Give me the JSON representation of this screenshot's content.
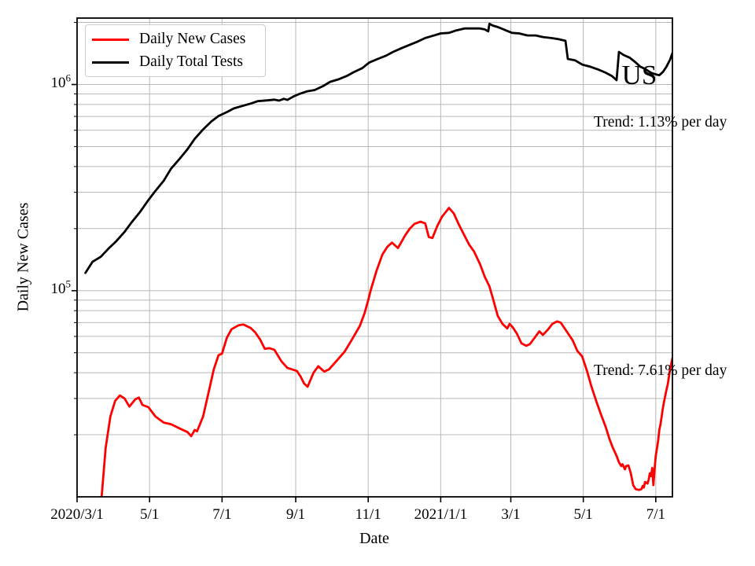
{
  "annotations": {
    "country": "US",
    "trend_tests": "Trend: 1.13% per day",
    "trend_cases": "Trend: 7.61% per day"
  },
  "legend": [
    {
      "label": "Daily New Cases",
      "color": "#ff0000"
    },
    {
      "label": "Daily Total Tests",
      "color": "#000000"
    }
  ],
  "axes": {
    "xlabel": "Date",
    "ylabel": "Daily New Cases",
    "x_ticks": [
      {
        "label": "2020/3/1",
        "date": "2020-03-01"
      },
      {
        "label": "5/1",
        "date": "2020-05-01"
      },
      {
        "label": "7/1",
        "date": "2020-07-01"
      },
      {
        "label": "9/1",
        "date": "2020-09-01"
      },
      {
        "label": "11/1",
        "date": "2020-11-01"
      },
      {
        "label": "2021/1/1",
        "date": "2021-01-01"
      },
      {
        "label": "3/1",
        "date": "2021-03-01"
      },
      {
        "label": "5/1",
        "date": "2021-05-01"
      },
      {
        "label": "7/1",
        "date": "2021-07-01"
      }
    ],
    "y_ticks": [
      {
        "base": "10",
        "exp": "5",
        "value": 100000
      },
      {
        "base": "10",
        "exp": "6",
        "value": 1000000
      }
    ]
  },
  "style": {
    "grid_color": "#b8b8b8",
    "spine_color": "#000000",
    "accent_red": "#ff0000"
  },
  "chart_data": {
    "type": "line",
    "y_scale": "log",
    "grid": true,
    "legend_position": "upper left",
    "x_range": [
      "2020-03-01",
      "2021-07-15"
    ],
    "y_range": [
      10000,
      2100000
    ],
    "title": "US",
    "xlabel": "Date",
    "ylabel": "Daily New Cases",
    "series": [
      {
        "name": "Daily New Cases",
        "color": "#ff0000",
        "points": [
          [
            "2020-03-20",
            8000
          ],
          [
            "2020-03-22",
            10500
          ],
          [
            "2020-03-25",
            17200
          ],
          [
            "2020-03-29",
            24500
          ],
          [
            "2020-04-02",
            29200
          ],
          [
            "2020-04-06",
            31000
          ],
          [
            "2020-04-10",
            30000
          ],
          [
            "2020-04-14",
            27400
          ],
          [
            "2020-04-19",
            29700
          ],
          [
            "2020-04-22",
            30300
          ],
          [
            "2020-04-25",
            27900
          ],
          [
            "2020-04-30",
            27200
          ],
          [
            "2020-05-06",
            24500
          ],
          [
            "2020-05-13",
            22900
          ],
          [
            "2020-05-19",
            22500
          ],
          [
            "2020-05-26",
            21500
          ],
          [
            "2020-06-02",
            20600
          ],
          [
            "2020-06-05",
            19700
          ],
          [
            "2020-06-08",
            21100
          ],
          [
            "2020-06-10",
            20800
          ],
          [
            "2020-06-15",
            24500
          ],
          [
            "2020-06-20",
            32700
          ],
          [
            "2020-06-24",
            41500
          ],
          [
            "2020-06-28",
            48600
          ],
          [
            "2020-07-01",
            49500
          ],
          [
            "2020-07-05",
            59000
          ],
          [
            "2020-07-09",
            65000
          ],
          [
            "2020-07-15",
            68000
          ],
          [
            "2020-07-19",
            68500
          ],
          [
            "2020-07-25",
            66000
          ],
          [
            "2020-07-29",
            62700
          ],
          [
            "2020-08-02",
            58000
          ],
          [
            "2020-08-06",
            52200
          ],
          [
            "2020-08-10",
            52600
          ],
          [
            "2020-08-14",
            51700
          ],
          [
            "2020-08-20",
            45400
          ],
          [
            "2020-08-25",
            42200
          ],
          [
            "2020-08-29",
            41500
          ],
          [
            "2020-09-02",
            40800
          ],
          [
            "2020-09-05",
            38400
          ],
          [
            "2020-09-08",
            35500
          ],
          [
            "2020-09-11",
            34200
          ],
          [
            "2020-09-16",
            40000
          ],
          [
            "2020-09-20",
            43000
          ],
          [
            "2020-09-25",
            40500
          ],
          [
            "2020-09-29",
            41500
          ],
          [
            "2020-10-05",
            45400
          ],
          [
            "2020-10-12",
            50500
          ],
          [
            "2020-10-18",
            57500
          ],
          [
            "2020-10-25",
            67500
          ],
          [
            "2020-10-29",
            78000
          ],
          [
            "2020-11-01",
            90000
          ],
          [
            "2020-11-03",
            100000
          ],
          [
            "2020-11-08",
            125000
          ],
          [
            "2020-11-13",
            150000
          ],
          [
            "2020-11-17",
            163000
          ],
          [
            "2020-11-21",
            171000
          ],
          [
            "2020-11-26",
            161000
          ],
          [
            "2020-12-02",
            185000
          ],
          [
            "2020-12-06",
            200000
          ],
          [
            "2020-12-10",
            211000
          ],
          [
            "2020-12-15",
            216000
          ],
          [
            "2020-12-19",
            212000
          ],
          [
            "2020-12-22",
            182000
          ],
          [
            "2020-12-25",
            180000
          ],
          [
            "2020-12-29",
            205000
          ],
          [
            "2021-01-02",
            228000
          ],
          [
            "2021-01-08",
            252000
          ],
          [
            "2021-01-12",
            237000
          ],
          [
            "2021-01-16",
            211000
          ],
          [
            "2021-01-21",
            185000
          ],
          [
            "2021-01-25",
            167000
          ],
          [
            "2021-01-29",
            155000
          ],
          [
            "2021-02-03",
            135000
          ],
          [
            "2021-02-07",
            117000
          ],
          [
            "2021-02-11",
            105000
          ],
          [
            "2021-02-14",
            91500
          ],
          [
            "2021-02-18",
            75500
          ],
          [
            "2021-02-22",
            69000
          ],
          [
            "2021-02-26",
            65600
          ],
          [
            "2021-02-28",
            69000
          ],
          [
            "2021-03-03",
            66000
          ],
          [
            "2021-03-06",
            62000
          ],
          [
            "2021-03-10",
            55500
          ],
          [
            "2021-03-14",
            54000
          ],
          [
            "2021-03-17",
            55000
          ],
          [
            "2021-03-21",
            59000
          ],
          [
            "2021-03-25",
            63500
          ],
          [
            "2021-03-28",
            61000
          ],
          [
            "2021-04-01",
            64500
          ],
          [
            "2021-04-05",
            69000
          ],
          [
            "2021-04-09",
            71000
          ],
          [
            "2021-04-12",
            70000
          ],
          [
            "2021-04-17",
            63500
          ],
          [
            "2021-04-22",
            57500
          ],
          [
            "2021-04-26",
            51000
          ],
          [
            "2021-04-30",
            48000
          ],
          [
            "2021-05-04",
            41000
          ],
          [
            "2021-05-08",
            34000
          ],
          [
            "2021-05-12",
            29000
          ],
          [
            "2021-05-16",
            25000
          ],
          [
            "2021-05-20",
            21700
          ],
          [
            "2021-05-23",
            19100
          ],
          [
            "2021-05-26",
            17200
          ],
          [
            "2021-05-29",
            15800
          ],
          [
            "2021-05-31",
            14700
          ],
          [
            "2021-06-02",
            14100
          ],
          [
            "2021-06-03",
            14400
          ],
          [
            "2021-06-05",
            13600
          ],
          [
            "2021-06-06",
            14100
          ],
          [
            "2021-06-08",
            14200
          ],
          [
            "2021-06-09",
            13600
          ],
          [
            "2021-06-10",
            13000
          ],
          [
            "2021-06-12",
            11400
          ],
          [
            "2021-06-14",
            10900
          ],
          [
            "2021-06-17",
            10800
          ],
          [
            "2021-06-19",
            10900
          ],
          [
            "2021-06-20",
            11300
          ],
          [
            "2021-06-21",
            11100
          ],
          [
            "2021-06-22",
            11800
          ],
          [
            "2021-06-24",
            11600
          ],
          [
            "2021-06-25",
            12100
          ],
          [
            "2021-06-26",
            13000
          ],
          [
            "2021-06-27",
            12600
          ],
          [
            "2021-06-28",
            13800
          ],
          [
            "2021-06-29",
            11400
          ],
          [
            "2021-06-30",
            13600
          ],
          [
            "2021-07-01",
            15800
          ],
          [
            "2021-07-02",
            17200
          ],
          [
            "2021-07-03",
            18800
          ],
          [
            "2021-07-04",
            21200
          ],
          [
            "2021-07-05",
            22500
          ],
          [
            "2021-07-07",
            27000
          ],
          [
            "2021-07-08",
            29000
          ],
          [
            "2021-07-10",
            33000
          ],
          [
            "2021-07-11",
            35000
          ],
          [
            "2021-07-13",
            41500
          ],
          [
            "2021-07-15",
            47000
          ]
        ]
      },
      {
        "name": "Daily Total Tests",
        "color": "#000000",
        "points": [
          [
            "2020-03-08",
            122000
          ],
          [
            "2020-03-14",
            138000
          ],
          [
            "2020-03-21",
            146000
          ],
          [
            "2020-03-27",
            159000
          ],
          [
            "2020-04-03",
            174000
          ],
          [
            "2020-04-10",
            193000
          ],
          [
            "2020-04-16",
            215000
          ],
          [
            "2020-04-23",
            241000
          ],
          [
            "2020-04-30",
            275000
          ],
          [
            "2020-05-06",
            305000
          ],
          [
            "2020-05-13",
            342000
          ],
          [
            "2020-05-19",
            390000
          ],
          [
            "2020-05-26",
            434000
          ],
          [
            "2020-06-02",
            486000
          ],
          [
            "2020-06-08",
            545000
          ],
          [
            "2020-06-15",
            605000
          ],
          [
            "2020-06-22",
            662000
          ],
          [
            "2020-06-28",
            703000
          ],
          [
            "2020-07-05",
            735000
          ],
          [
            "2020-07-11",
            766000
          ],
          [
            "2020-07-18",
            787000
          ],
          [
            "2020-07-25",
            808000
          ],
          [
            "2020-07-31",
            830000
          ],
          [
            "2020-08-07",
            837000
          ],
          [
            "2020-08-14",
            844000
          ],
          [
            "2020-08-18",
            835000
          ],
          [
            "2020-08-22",
            852000
          ],
          [
            "2020-08-25",
            842000
          ],
          [
            "2020-08-30",
            874000
          ],
          [
            "2020-09-04",
            900000
          ],
          [
            "2020-09-10",
            925000
          ],
          [
            "2020-09-17",
            940000
          ],
          [
            "2020-09-24",
            983000
          ],
          [
            "2020-09-30",
            1030000
          ],
          [
            "2020-10-07",
            1060000
          ],
          [
            "2020-10-14",
            1100000
          ],
          [
            "2020-10-20",
            1150000
          ],
          [
            "2020-10-27",
            1200000
          ],
          [
            "2020-11-02",
            1280000
          ],
          [
            "2020-11-09",
            1330000
          ],
          [
            "2020-11-16",
            1380000
          ],
          [
            "2020-11-22",
            1440000
          ],
          [
            "2020-11-29",
            1500000
          ],
          [
            "2020-12-06",
            1560000
          ],
          [
            "2020-12-12",
            1610000
          ],
          [
            "2020-12-19",
            1680000
          ],
          [
            "2020-12-25",
            1720000
          ],
          [
            "2021-01-01",
            1770000
          ],
          [
            "2021-01-08",
            1780000
          ],
          [
            "2021-01-14",
            1830000
          ],
          [
            "2021-01-21",
            1870000
          ],
          [
            "2021-01-28",
            1870000
          ],
          [
            "2021-02-03",
            1870000
          ],
          [
            "2021-02-07",
            1850000
          ],
          [
            "2021-02-10",
            1810000
          ],
          [
            "2021-02-11",
            1970000
          ],
          [
            "2021-02-14",
            1930000
          ],
          [
            "2021-02-18",
            1900000
          ],
          [
            "2021-02-23",
            1850000
          ],
          [
            "2021-03-02",
            1780000
          ],
          [
            "2021-03-08",
            1770000
          ],
          [
            "2021-03-15",
            1730000
          ],
          [
            "2021-03-22",
            1730000
          ],
          [
            "2021-03-28",
            1700000
          ],
          [
            "2021-04-04",
            1680000
          ],
          [
            "2021-04-10",
            1660000
          ],
          [
            "2021-04-16",
            1630000
          ],
          [
            "2021-04-18",
            1330000
          ],
          [
            "2021-04-24",
            1310000
          ],
          [
            "2021-04-30",
            1250000
          ],
          [
            "2021-05-07",
            1220000
          ],
          [
            "2021-05-14",
            1180000
          ],
          [
            "2021-05-20",
            1140000
          ],
          [
            "2021-05-25",
            1100000
          ],
          [
            "2021-05-29",
            1050000
          ],
          [
            "2021-05-31",
            1440000
          ],
          [
            "2021-06-04",
            1390000
          ],
          [
            "2021-06-09",
            1350000
          ],
          [
            "2021-06-14",
            1280000
          ],
          [
            "2021-06-18",
            1220000
          ],
          [
            "2021-06-22",
            1190000
          ],
          [
            "2021-06-27",
            1140000
          ],
          [
            "2021-07-01",
            1120000
          ],
          [
            "2021-07-04",
            1110000
          ],
          [
            "2021-07-07",
            1150000
          ],
          [
            "2021-07-10",
            1220000
          ],
          [
            "2021-07-13",
            1320000
          ],
          [
            "2021-07-15",
            1420000
          ]
        ]
      }
    ]
  }
}
